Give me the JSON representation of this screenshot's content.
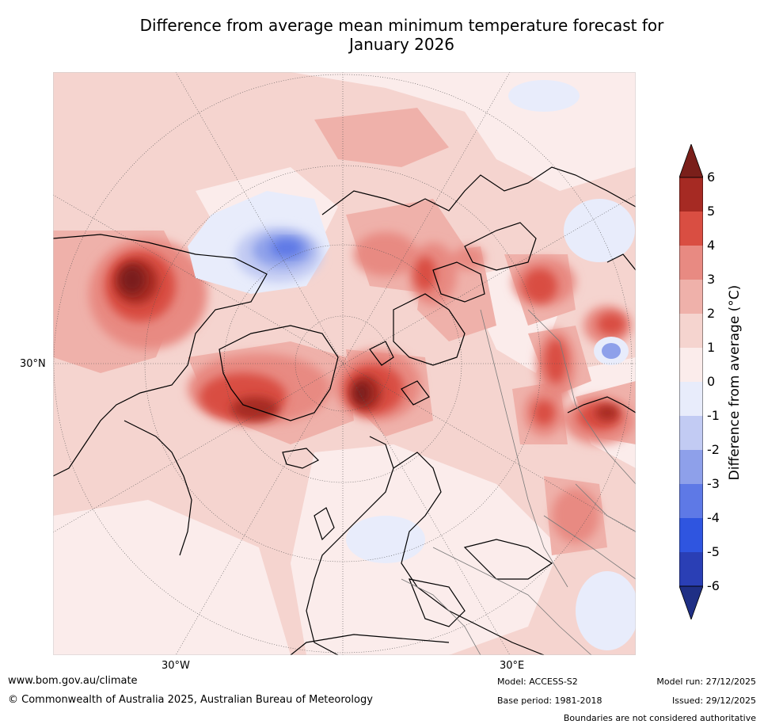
{
  "title": {
    "line1": "Difference from average mean minimum temperature forecast for",
    "line2": "January 2026"
  },
  "map": {
    "lat_label": "30°N",
    "lon_labels": [
      "30°W",
      "30°E"
    ]
  },
  "legend": {
    "label": "Difference from average (°C)",
    "ticks": [
      "6",
      "5",
      "4",
      "3",
      "2",
      "1",
      "0",
      "-1",
      "-2",
      "-3",
      "-4",
      "-5",
      "-6"
    ],
    "colors": {
      "above_6": "#7a1f1a",
      "5_6": "#a62a23",
      "4_5": "#d94e42",
      "3_4": "#e88a82",
      "2_3": "#efb1aa",
      "1_2": "#f5d4cf",
      "0_1": "#fbeceb",
      "m1_0": "#e8ecfb",
      "m2_m1": "#c2cbf3",
      "m3_m2": "#8ea0ea",
      "m4_m3": "#5e79e6",
      "m5_m4": "#2f55e0",
      "m6_m5": "#2a3fb5",
      "below_m6": "#1f2f85"
    }
  },
  "footer": {
    "url": "www.bom.gov.au/climate",
    "copyright": "© Commonwealth of Australia 2025, Australian Bureau of Meteorology",
    "model": "Model: ACCESS-S2",
    "base_period": "Base period: 1981-2018",
    "model_run": "Model run: 27/12/2025",
    "issued": "Issued: 29/12/2025",
    "disclaimer": "Boundaries are not considered authoritative"
  }
}
